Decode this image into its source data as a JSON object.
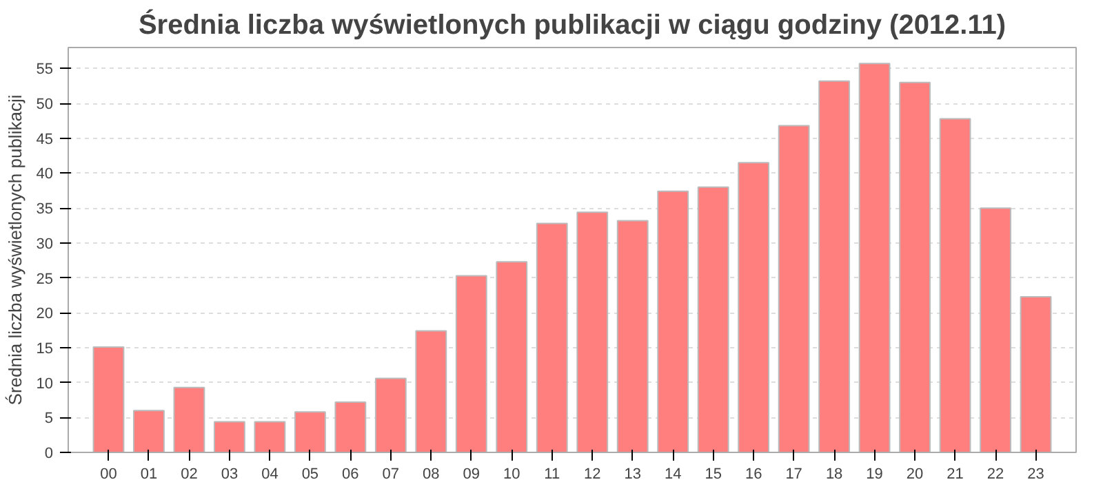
{
  "chart_data": {
    "type": "bar",
    "title": "Średnia liczba wyświetlonych publikacji w ciągu godziny (2012.11)",
    "ylabel": "Średnia liczba wyświetlonych publikacji",
    "categories": [
      "00",
      "01",
      "02",
      "03",
      "04",
      "05",
      "06",
      "07",
      "08",
      "09",
      "10",
      "11",
      "12",
      "13",
      "14",
      "15",
      "16",
      "17",
      "18",
      "19",
      "20",
      "21",
      "22",
      "23"
    ],
    "values": [
      15.1,
      6.0,
      9.3,
      4.4,
      4.4,
      5.8,
      7.2,
      10.6,
      17.4,
      25.3,
      27.3,
      32.8,
      34.4,
      33.2,
      37.4,
      38.0,
      41.5,
      46.8,
      53.2,
      55.7,
      53.0,
      47.8,
      35.0,
      22.3
    ],
    "color": "#ff7f7f",
    "ylim": [
      0,
      58
    ],
    "yticks": [
      0,
      5,
      10,
      15,
      20,
      25,
      30,
      35,
      40,
      45,
      50,
      55
    ],
    "grid": "y"
  }
}
